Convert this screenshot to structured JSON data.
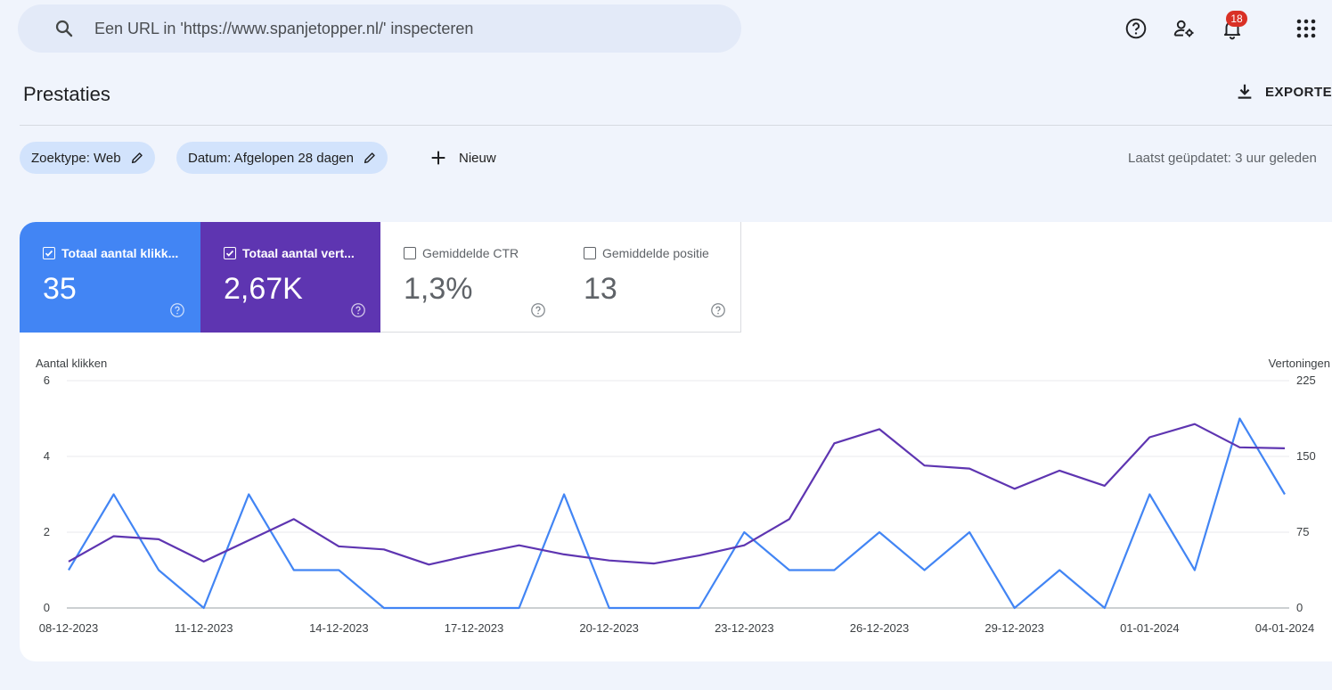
{
  "search": {
    "placeholder": "Een URL in 'https://www.spanjetopper.nl/' inspecteren"
  },
  "header": {
    "notification_count": "18"
  },
  "page": {
    "title": "Prestaties",
    "export_label": "EXPORTEREN"
  },
  "filters": {
    "chips": [
      {
        "label": "Zoektype: Web"
      },
      {
        "label": "Datum: Afgelopen 28 dagen"
      }
    ],
    "new_label": "Nieuw",
    "last_updated": "Laatst geüpdatet: 3 uur geleden"
  },
  "metrics": [
    {
      "label": "Totaal aantal klikk...",
      "value": "35",
      "checked": true,
      "color": "#4285f4"
    },
    {
      "label": "Totaal aantal vert...",
      "value": "2,67K",
      "checked": true,
      "color": "#5e35b1"
    },
    {
      "label": "Gemiddelde CTR",
      "value": "1,3%",
      "checked": false
    },
    {
      "label": "Gemiddelde positie",
      "value": "13",
      "checked": false
    }
  ],
  "chart_data": {
    "type": "line",
    "left_axis_label": "Aantal klikken",
    "right_axis_label": "Vertoningen",
    "y_left": {
      "ticks": [
        0,
        2,
        4,
        6
      ],
      "range": [
        0,
        6
      ]
    },
    "y_right": {
      "ticks": [
        0,
        75,
        150,
        225
      ],
      "range": [
        0,
        225
      ]
    },
    "x_tick_labels": [
      "08-12-2023",
      "11-12-2023",
      "14-12-2023",
      "17-12-2023",
      "20-12-2023",
      "23-12-2023",
      "26-12-2023",
      "29-12-2023",
      "01-01-2024",
      "04-01-2024"
    ],
    "x": [
      "08-12-2023",
      "09-12-2023",
      "10-12-2023",
      "11-12-2023",
      "12-12-2023",
      "13-12-2023",
      "14-12-2023",
      "15-12-2023",
      "16-12-2023",
      "17-12-2023",
      "18-12-2023",
      "19-12-2023",
      "20-12-2023",
      "21-12-2023",
      "22-12-2023",
      "23-12-2023",
      "24-12-2023",
      "25-12-2023",
      "26-12-2023",
      "27-12-2023",
      "28-12-2023",
      "29-12-2023",
      "30-12-2023",
      "31-12-2023",
      "01-01-2024",
      "02-01-2024",
      "03-01-2024",
      "04-01-2024"
    ],
    "grid": true,
    "series": [
      {
        "name": "Totaal aantal klikken",
        "axis": "left",
        "color": "#4285f4",
        "values": [
          1,
          3,
          1,
          0,
          3,
          1,
          1,
          0,
          0,
          0,
          0,
          3,
          0,
          0,
          0,
          2,
          1,
          1,
          2,
          1,
          2,
          0,
          1,
          0,
          3,
          1,
          5,
          3
        ]
      },
      {
        "name": "Totaal aantal vertoningen",
        "axis": "right",
        "color": "#5e35b1",
        "values": [
          46,
          71,
          68,
          46,
          67,
          88,
          61,
          58,
          43,
          53,
          62,
          53,
          47,
          44,
          52,
          62,
          88,
          163,
          177,
          141,
          138,
          118,
          136,
          121,
          169,
          182,
          159,
          158
        ]
      }
    ]
  }
}
